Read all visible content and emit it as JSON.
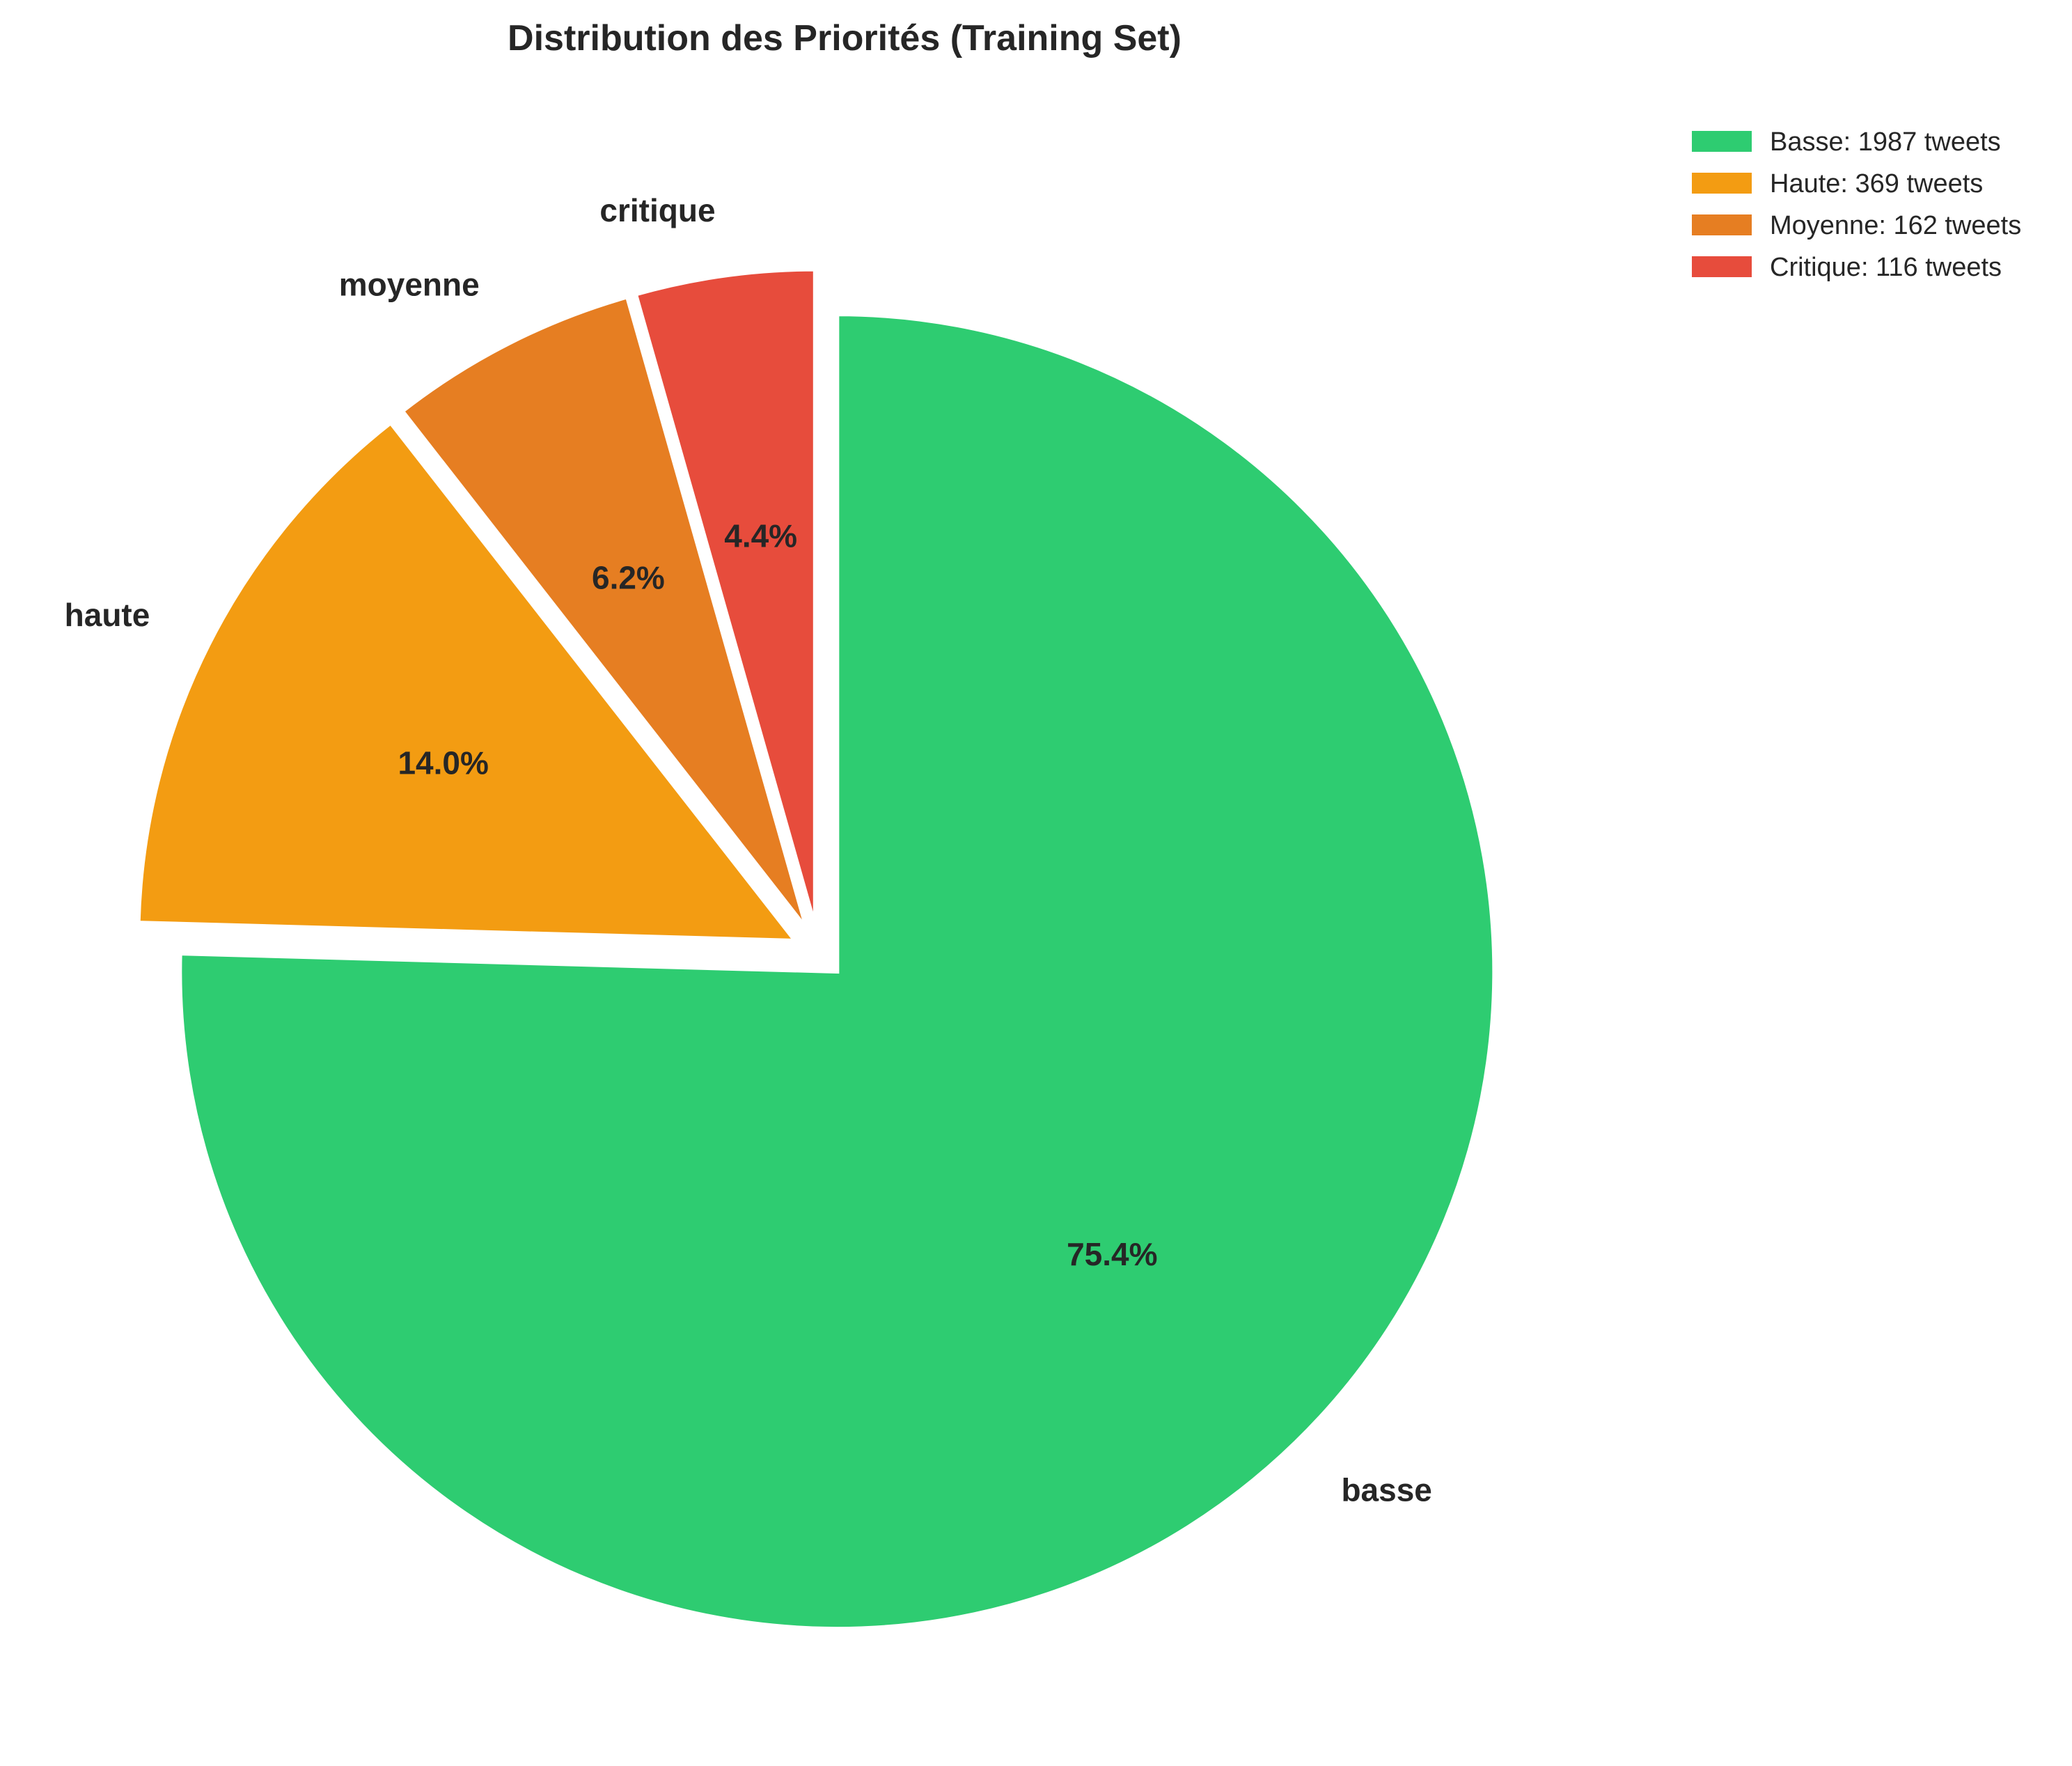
{
  "chart_data": {
    "type": "pie",
    "title": "Distribution des Priorités (Training Set)",
    "categories": [
      "basse",
      "haute",
      "moyenne",
      "critique"
    ],
    "values": [
      1987,
      369,
      162,
      116
    ],
    "percent_labels": [
      "75.4%",
      "14.0%",
      "6.2%",
      "4.4%"
    ],
    "colors": [
      "#2ecc71",
      "#f39c12",
      "#e67e22",
      "#e74c3c"
    ],
    "exploded": [
      true,
      true,
      true,
      true
    ],
    "start_angle_deg": 90,
    "direction": "clockwise",
    "legend": {
      "placement": "top-right",
      "entries": [
        "Basse: 1987 tweets",
        "Haute: 369 tweets",
        "Moyenne: 162 tweets",
        "Critique: 116 tweets"
      ]
    }
  }
}
